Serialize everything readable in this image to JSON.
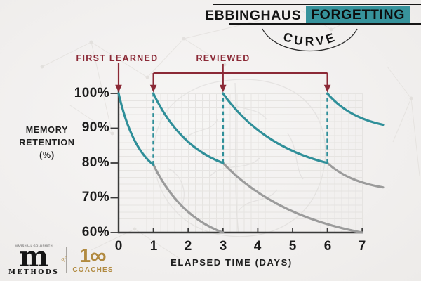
{
  "header": {
    "title_word_1": "EBBINGHAUS",
    "title_word_2": "FORGETTING",
    "curve_label": "CURVE",
    "highlight_color": "#37939c"
  },
  "annotations": {
    "first_learned": "FIRST LEARNED",
    "reviewed": "REVIEWED",
    "arrow_color": "#8b2936"
  },
  "chart_data": {
    "type": "line",
    "title": "Ebbinghaus Forgetting Curve",
    "xlabel": "ELAPSED TIME (DAYS)",
    "ylabel": "MEMORY RETENTION (%)",
    "xlim": [
      0,
      7.6
    ],
    "ylim": [
      60,
      100
    ],
    "grid": true,
    "x_tick_labels": [
      "0",
      "1",
      "2",
      "3",
      "4",
      "5",
      "6",
      "7"
    ],
    "y_tick_labels": [
      "100%",
      "90%",
      "80%",
      "70%",
      "60%"
    ],
    "review_days": [
      1,
      3,
      6
    ],
    "series": [
      {
        "name": "memory-without-review",
        "role": "unreviewed",
        "color": "#9b9b9b",
        "segments": [
          {
            "x": [
              1,
              3
            ],
            "y": [
              79.5,
              60
            ]
          },
          {
            "x": [
              3,
              7
            ],
            "y": [
              80,
              60
            ]
          },
          {
            "x": [
              6,
              7.6
            ],
            "y": [
              80,
              73
            ]
          }
        ]
      },
      {
        "name": "memory-with-review",
        "role": "reviewed",
        "color": "#2f8f99",
        "segments": [
          {
            "x": [
              0,
              1
            ],
            "y": [
              100,
              79.5
            ]
          },
          {
            "x": [
              1,
              3
            ],
            "y": [
              100,
              80
            ]
          },
          {
            "x": [
              3,
              6
            ],
            "y": [
              100,
              80
            ]
          },
          {
            "x": [
              6,
              7.6
            ],
            "y": [
              100,
              91
            ]
          }
        ]
      }
    ]
  },
  "footer": {
    "methods_logo": {
      "small_text": "MARSHALL GOLDSMITH",
      "monogram": "m",
      "label": "METHODS"
    },
    "of_label": "of",
    "coaches_logo": {
      "number": "1",
      "infinity": "∞",
      "label": "COACHES"
    },
    "gold_color": "#b18a40"
  }
}
